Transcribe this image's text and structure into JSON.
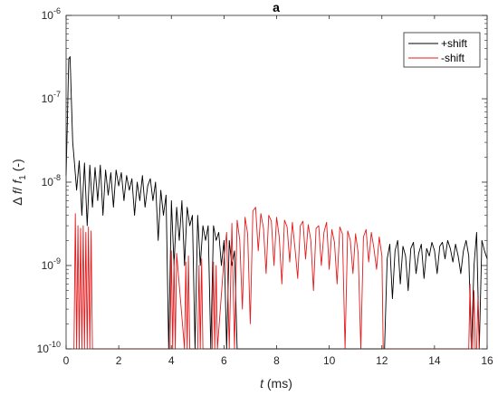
{
  "chart_data": {
    "type": "line",
    "title": "a",
    "xlabel": "t (ms)",
    "xlabel_parts": {
      "var": "t",
      "unit": " (ms)"
    },
    "ylabel": "Δ f / f1 (-)",
    "ylabel_parts": {
      "delta": "Δ ",
      "f": "f",
      "slash": "/ ",
      "f1": "f",
      "sub": "1",
      "unit": " (-)"
    },
    "xlim": [
      0,
      16
    ],
    "ylim": [
      1e-10,
      1e-06
    ],
    "yscale": "log",
    "grid": false,
    "legend_position": "top-right",
    "x_ticks": [
      0,
      2,
      4,
      6,
      8,
      10,
      12,
      14,
      16
    ],
    "x_tick_labels": [
      "0",
      "2",
      "4",
      "6",
      "8",
      "10",
      "12",
      "14",
      "16"
    ],
    "y_ticks": [
      {
        "value": 1e-06,
        "base": "10",
        "exp": "-6"
      },
      {
        "value": 1e-07,
        "base": "10",
        "exp": "-7"
      },
      {
        "value": 1e-08,
        "base": "10",
        "exp": "-8"
      },
      {
        "value": 1e-09,
        "base": "10",
        "exp": "-9"
      },
      {
        "value": 1e-10,
        "base": "10",
        "exp": "-10"
      }
    ],
    "series": [
      {
        "name": "+shift",
        "color": "#000000",
        "x": [
          0.0,
          0.05,
          0.1,
          0.15,
          0.2,
          0.25,
          0.3,
          0.4,
          0.5,
          0.6,
          0.7,
          0.8,
          0.9,
          1.0,
          1.1,
          1.2,
          1.3,
          1.4,
          1.5,
          1.6,
          1.7,
          1.8,
          1.9,
          2.0,
          2.1,
          2.2,
          2.3,
          2.4,
          2.5,
          2.6,
          2.7,
          2.8,
          2.9,
          3.0,
          3.1,
          3.2,
          3.3,
          3.4,
          3.5,
          3.6,
          3.7,
          3.8,
          3.9,
          4.0,
          4.1,
          4.2,
          4.3,
          4.4,
          4.5,
          4.6,
          4.7,
          4.8,
          4.9,
          5.0,
          5.1,
          5.2,
          5.3,
          5.4,
          5.5,
          5.6,
          5.7,
          5.8,
          5.9,
          6.0,
          6.1,
          6.2,
          6.3,
          6.4,
          6.5,
          12.1,
          12.2,
          12.3,
          12.4,
          12.5,
          12.6,
          12.7,
          12.8,
          12.9,
          13.0,
          13.1,
          13.2,
          13.3,
          13.4,
          13.5,
          13.6,
          13.7,
          13.8,
          13.9,
          14.0,
          14.1,
          14.2,
          14.3,
          14.4,
          14.5,
          14.6,
          14.7,
          14.8,
          14.9,
          15.0,
          15.1,
          15.2,
          15.3,
          15.4,
          15.5,
          15.6,
          15.7,
          15.8,
          15.9,
          16.0
        ],
        "y": [
          1.2e-08,
          6e-08,
          3e-07,
          3.2e-07,
          1e-07,
          3e-08,
          2e-08,
          8e-09,
          1.8e-08,
          4e-09,
          1.7e-08,
          3e-09,
          1.6e-08,
          5e-09,
          1.5e-08,
          6e-09,
          1.6e-08,
          4e-09,
          1.4e-08,
          7e-09,
          1.3e-08,
          5e-09,
          1.4e-08,
          9e-09,
          1.3e-08,
          6e-09,
          1.2e-08,
          8e-09,
          1.1e-08,
          4e-09,
          1e-08,
          6e-09,
          1.2e-08,
          5e-09,
          9e-09,
          1.1e-08,
          6e-09,
          1e-08,
          2e-09,
          8e-09,
          4e-09,
          7e-09,
          1e-10,
          6e-09,
          1e-09,
          5e-09,
          2e-09,
          6e-09,
          1e-09,
          5e-09,
          3e-09,
          4e-09,
          1e-10,
          4e-09,
          1e-09,
          3e-09,
          2e-09,
          3e-09,
          1e-10,
          3e-09,
          2e-09,
          2.5e-09,
          1e-09,
          2e-09,
          1e-10,
          2e-09,
          1e-09,
          1.5e-09,
          1e-10,
          1e-10,
          1.2e-09,
          1.8e-09,
          4e-10,
          1.5e-09,
          2e-09,
          6e-10,
          1.7e-09,
          1.3e-09,
          5e-10,
          1.6e-09,
          1.9e-09,
          8e-10,
          1.4e-09,
          1.8e-09,
          7e-10,
          1.6e-09,
          1.3e-09,
          1.9e-09,
          1.5e-09,
          8e-10,
          1.7e-09,
          1.9e-09,
          1.2e-09,
          2e-09,
          1.6e-09,
          1.1e-09,
          1.8e-09,
          1.3e-09,
          8e-10,
          1.5e-09,
          2e-09,
          1.3e-09,
          1e-10,
          1e-09,
          2.5e-09,
          1e-10,
          2e-09,
          1.5e-09,
          1.2e-09
        ]
      },
      {
        "name": "-shift",
        "color": "#e41a1c",
        "x": [
          0.3,
          0.35,
          0.4,
          0.45,
          0.5,
          0.55,
          0.6,
          0.65,
          0.7,
          0.75,
          0.8,
          0.85,
          0.9,
          0.95,
          1.0,
          3.95,
          4.0,
          4.05,
          4.1,
          4.15,
          4.2,
          4.5,
          4.55,
          4.6,
          4.65,
          4.7,
          5.0,
          5.05,
          5.1,
          5.15,
          5.2,
          5.55,
          5.6,
          5.65,
          5.7,
          5.75,
          6.0,
          6.1,
          6.2,
          6.3,
          6.4,
          6.5,
          6.6,
          6.7,
          6.8,
          6.9,
          7.0,
          7.1,
          7.2,
          7.3,
          7.4,
          7.5,
          7.6,
          7.7,
          7.8,
          7.9,
          8.0,
          8.1,
          8.2,
          8.3,
          8.4,
          8.5,
          8.6,
          8.7,
          8.8,
          8.9,
          9.0,
          9.1,
          9.2,
          9.3,
          9.4,
          9.5,
          9.6,
          9.7,
          9.8,
          9.9,
          10.0,
          10.1,
          10.2,
          10.3,
          10.4,
          10.5,
          10.6,
          10.7,
          10.8,
          10.9,
          11.0,
          11.1,
          11.2,
          11.3,
          11.4,
          11.5,
          11.6,
          11.7,
          11.8,
          11.9,
          12.0,
          12.05,
          12.1,
          15.3,
          15.35,
          15.4,
          15.45,
          15.5,
          15.55,
          15.6,
          15.65,
          15.7
        ],
        "y": [
          1e-10,
          4.2e-09,
          1e-10,
          3e-09,
          1e-10,
          2.8e-09,
          1e-10,
          3e-09,
          1e-10,
          2.5e-09,
          1e-10,
          2.9e-09,
          1e-10,
          2.6e-09,
          1e-10,
          1e-10,
          1.5e-09,
          1e-10,
          1.2e-09,
          1e-10,
          1.4e-09,
          1e-10,
          1.1e-09,
          1e-10,
          1.3e-09,
          1e-10,
          1e-10,
          1e-09,
          1e-10,
          1.2e-09,
          1e-10,
          1e-10,
          1.1e-09,
          1e-10,
          1e-09,
          1e-10,
          1.2e-09,
          2.5e-09,
          1e-10,
          3.2e-09,
          1e-10,
          3.5e-09,
          2e-09,
          3e-10,
          3.8e-09,
          2.4e-09,
          2e-10,
          4.5e-09,
          5e-09,
          1.5e-09,
          4.2e-09,
          2.8e-09,
          8e-10,
          4e-09,
          3.4e-09,
          1e-09,
          3.8e-09,
          2.2e-09,
          6e-10,
          3.5e-09,
          2.9e-09,
          1.1e-09,
          3.3e-09,
          1.6e-09,
          7e-10,
          3e-09,
          3.4e-09,
          1.2e-09,
          3.1e-09,
          2e-09,
          5e-10,
          2.8e-09,
          3e-09,
          1e-09,
          2.5e-09,
          3.3e-09,
          9e-10,
          2.7e-09,
          1.9e-09,
          6e-10,
          2.9e-09,
          2.4e-09,
          1e-10,
          2.6e-09,
          2e-09,
          8e-10,
          2.4e-09,
          1.4e-09,
          1e-10,
          2.2e-09,
          2.7e-09,
          1.1e-09,
          2.5e-09,
          1.6e-09,
          9e-10,
          2.2e-09,
          1.3e-09,
          1e-10,
          1e-10,
          1e-10,
          6e-10,
          1e-10,
          1e-10,
          5e-10,
          1e-10,
          1e-10,
          4e-10,
          1e-10
        ]
      }
    ]
  }
}
